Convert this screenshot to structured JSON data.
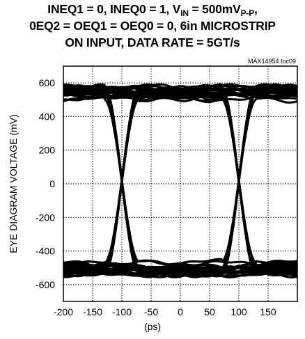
{
  "title": {
    "line1_prefix": "INEQ1 = 0, INEQ0 = 1, V",
    "line1_sub1": "IN",
    "line1_mid": " = 500mV",
    "line1_sub2": "P-P",
    "line1_suffix": ",",
    "line2": "0EQ2 = OEQ1 = OEQ0 = 0, 6in MICROSTRIP",
    "line3": "ON INPUT, DATA RATE = 5GT/s"
  },
  "annotation": "MAX14954 toc09",
  "chart_data": {
    "type": "line",
    "description_kind": "eye-diagram",
    "xlabel": "(ps)",
    "ylabel": "EYE DIAGRAM VOLTAGE (mV)",
    "xlim": [
      -200,
      200
    ],
    "ylim": [
      -700,
      700
    ],
    "x_ticks": [
      -200,
      -150,
      -100,
      -50,
      0,
      50,
      100,
      150
    ],
    "y_ticks": [
      600,
      400,
      200,
      0,
      -200,
      -400,
      -600
    ],
    "grid": true,
    "series": [
      {
        "kind": "high_level",
        "mean": 540,
        "spread": 40
      },
      {
        "kind": "low_level",
        "mean": -505,
        "spread": 40
      },
      {
        "kind": "crossing",
        "x": -100,
        "y": 0
      },
      {
        "kind": "crossing",
        "x": 100,
        "y": 0
      }
    ]
  }
}
